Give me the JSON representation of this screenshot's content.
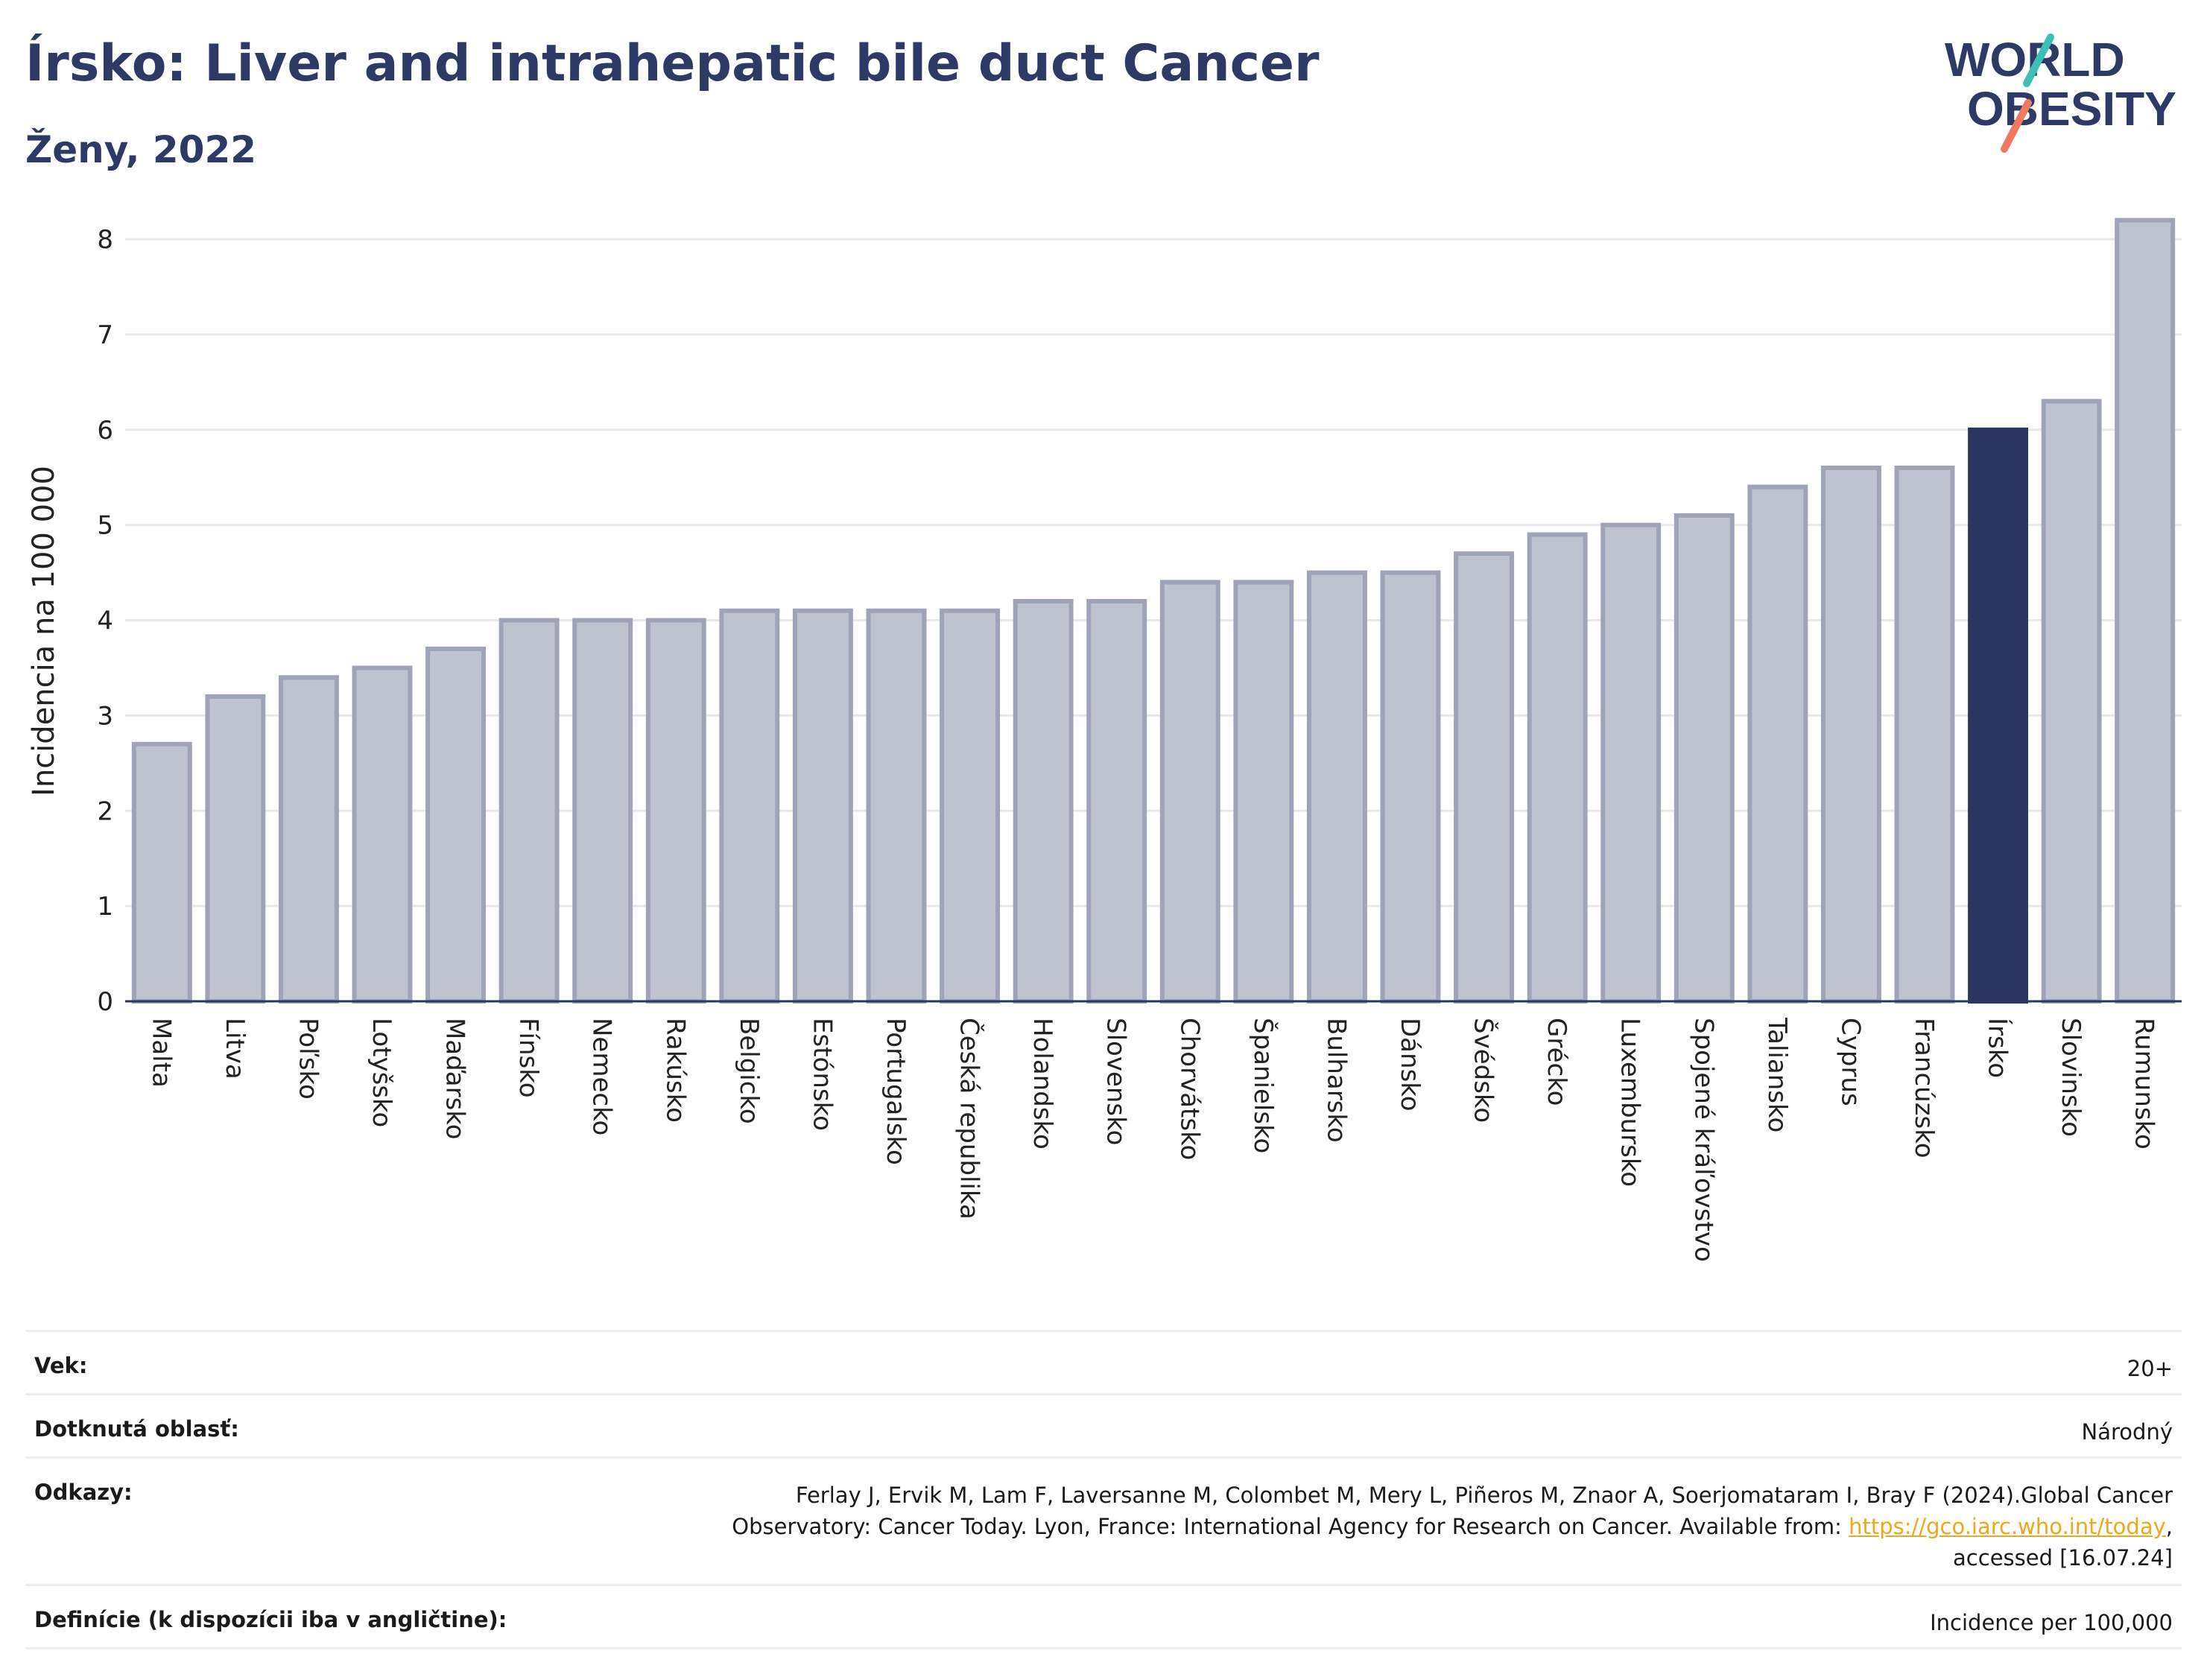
{
  "header": {
    "title": "Írsko: Liver and intrahepatic bile duct Cancer",
    "subtitle": "Ženy, 2022"
  },
  "logo": {
    "line1": "WORLD",
    "line2": "OBESITY",
    "color_primary": "#2d3a66",
    "color_teal": "#3cbfb4",
    "color_coral": "#f07a5f"
  },
  "chart_data": {
    "type": "bar",
    "title": "Írsko: Liver and intrahepatic bile duct Cancer",
    "subtitle": "Ženy, 2022",
    "xlabel": "",
    "ylabel": "Incidencia na 100 000",
    "ylim": [
      0,
      8.4
    ],
    "yticks": [
      0,
      1,
      2,
      3,
      4,
      5,
      6,
      7,
      8
    ],
    "grid": true,
    "categories": [
      "Malta",
      "Litva",
      "Poľsko",
      "Lotyšsko",
      "Maďarsko",
      "Fínsko",
      "Nemecko",
      "Rakúsko",
      "Belgicko",
      "Estónsko",
      "Portugalsko",
      "Česká republika",
      "Holandsko",
      "Slovensko",
      "Chorvátsko",
      "Španielsko",
      "Bulharsko",
      "Dánsko",
      "Švédsko",
      "Grécko",
      "Luxembursko",
      "Spojené kráľovstvo",
      "Taliansko",
      "Cyprus",
      "Francúzsko",
      "Írsko",
      "Slovinsko",
      "Rumunsko"
    ],
    "values": [
      2.7,
      3.2,
      3.4,
      3.5,
      3.7,
      4.0,
      4.0,
      4.0,
      4.1,
      4.1,
      4.1,
      4.1,
      4.2,
      4.2,
      4.4,
      4.4,
      4.5,
      4.5,
      4.7,
      4.9,
      5.0,
      5.1,
      5.4,
      5.6,
      5.6,
      6.0,
      6.3,
      8.2
    ],
    "highlight": "Írsko",
    "colors": {
      "bar": "#bfc2cf",
      "bar_border": "#9ea3b8",
      "highlight": "#2b3561",
      "grid": "#e6e8ee",
      "axis": "#2b3561"
    }
  },
  "info": {
    "rows": [
      {
        "label": "Vek:",
        "value": "20+"
      },
      {
        "label": "Dotknutá oblasť:",
        "value": "Národný"
      },
      {
        "label": "Odkazy:",
        "line1": "Ferlay J, Ervik M, Lam F, Laversanne M, Colombet M, Mery L, Piñeros M, Znaor A, Soerjomataram I, Bray F (2024).Global Cancer",
        "line2_pre": "Observatory: Cancer Today. Lyon, France: International Agency for Research on Cancer. Available from: ",
        "link": "https://gco.iarc.who.int/today",
        "line2_post": ",",
        "line3": "accessed [16.07.24]"
      },
      {
        "label": "Definície (k dispozícii iba v angličtine):",
        "value": "Incidence per 100,000"
      }
    ]
  }
}
